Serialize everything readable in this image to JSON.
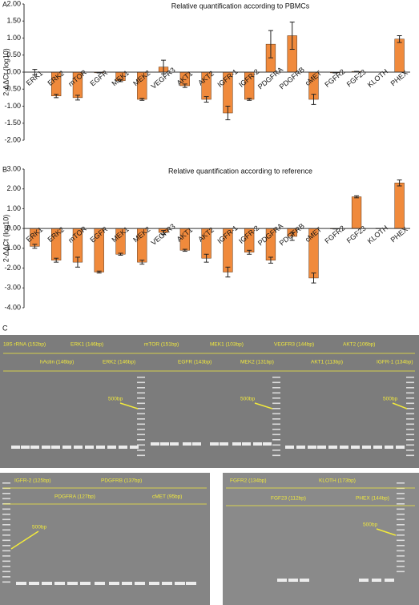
{
  "chart_data": [
    {
      "type": "bar",
      "panel_label": "A",
      "title": "Relative quantification according to PBMCs",
      "ylabel": "2-ΔΔCt (log10)",
      "categories": [
        "ERK1",
        "ERK2",
        "mTOR",
        "EGFR",
        "MEK1",
        "MEK2",
        "VEGFR3",
        "AKT1",
        "AKT2",
        "IGFR-1",
        "IGFR-2",
        "PDGFRA",
        "PDGFRB",
        "cMET",
        "FGFR2",
        "FGF23",
        "KLOTH",
        "PHEX"
      ],
      "values": [
        0,
        -0.7,
        -0.75,
        -0.02,
        -0.25,
        -0.8,
        0.15,
        -0.4,
        -0.8,
        -1.2,
        -0.8,
        0.82,
        1.07,
        -0.8,
        -0.02,
        0.02,
        0,
        0.97
      ],
      "errors": [
        0.08,
        0.05,
        0.07,
        0,
        0.03,
        0.03,
        0.2,
        0.05,
        0.08,
        0.2,
        0.03,
        0.4,
        0.4,
        0.15,
        0,
        0,
        0,
        0.1
      ],
      "color": "#f08a3c",
      "ylim": [
        -2,
        2
      ],
      "yticks": [
        {
          "value": -2,
          "label": "-2.00"
        },
        {
          "value": -1.5,
          "label": "-1.50"
        },
        {
          "value": -1,
          "label": "-1.00"
        },
        {
          "value": -0.5,
          "label": "-0.50"
        },
        {
          "value": 0,
          "label": "0.00"
        },
        {
          "value": 0.5,
          "label": "0.50"
        },
        {
          "value": 1,
          "label": "1.00"
        },
        {
          "value": 1.5,
          "label": "1.50"
        },
        {
          "value": 2,
          "label": "2.00"
        }
      ]
    },
    {
      "type": "bar",
      "panel_label": "B",
      "title": "Relative quantification according to reference",
      "ylabel": "2-ΔΔCt (log10)",
      "categories": [
        "ERK1",
        "ERK2",
        "mTOR",
        "EGFR",
        "MEK1",
        "MEK2",
        "VEGFR3",
        "AKT1",
        "AKT2",
        "IGFR-1",
        "IGFR-2",
        "PDGFRA",
        "PDGFRB",
        "cMET",
        "FGFR2",
        "FGF23",
        "KLOTH",
        "PHEX"
      ],
      "values": [
        -0.9,
        -1.6,
        -1.7,
        -2.2,
        -1.3,
        -1.7,
        -0.2,
        -1.1,
        -1.5,
        -2.2,
        -1.2,
        -1.6,
        -0.4,
        -2.5,
        -0.02,
        1.6,
        0,
        2.3
      ],
      "errors": [
        0.1,
        0.1,
        0.25,
        0.05,
        0.05,
        0.1,
        0.1,
        0.05,
        0.2,
        0.25,
        0.1,
        0.15,
        0.2,
        0.25,
        0,
        0.05,
        0,
        0.15
      ],
      "color": "#f08a3c",
      "ylim": [
        -4,
        3
      ],
      "yticks": [
        {
          "value": -4,
          "label": "-4.00"
        },
        {
          "value": -3,
          "label": "-3.00"
        },
        {
          "value": -2,
          "label": "-2.00"
        },
        {
          "value": -1,
          "label": "-1.00"
        },
        {
          "value": 0,
          "label": "0.00"
        },
        {
          "value": 1,
          "label": "1.00"
        },
        {
          "value": 2,
          "label": "2.00"
        },
        {
          "value": 3,
          "label": "3.00"
        }
      ]
    }
  ],
  "gels": {
    "panel_label": "C",
    "top": [
      "18S rRNA (152bp)",
      "hActin (146bp)",
      "ERK1 (146bp)",
      "ERK2 (146bp)",
      "mTOR (151bp)",
      "EGFR (143bp)",
      "MEK1 (103bp)",
      "MEK2 (131bp)",
      "VEGFR3 (144bp)",
      "AKT1 (113bp)",
      "AKT2 (106bp)",
      "IGFR-1 (134bp)",
      "500bp",
      "500bp",
      "500bp"
    ],
    "bottom_left": [
      "IGFR-2 (125bp)",
      "PDGFRB (137bp)",
      "PDGFRA (127bp)",
      "cMET (95bp)",
      "500bp"
    ],
    "bottom_right": [
      "FGFR2 (134bp)",
      "KLOTH (173bp)",
      "FGF23 (112bp)",
      "PHEX (144bp)",
      "500bp"
    ]
  }
}
